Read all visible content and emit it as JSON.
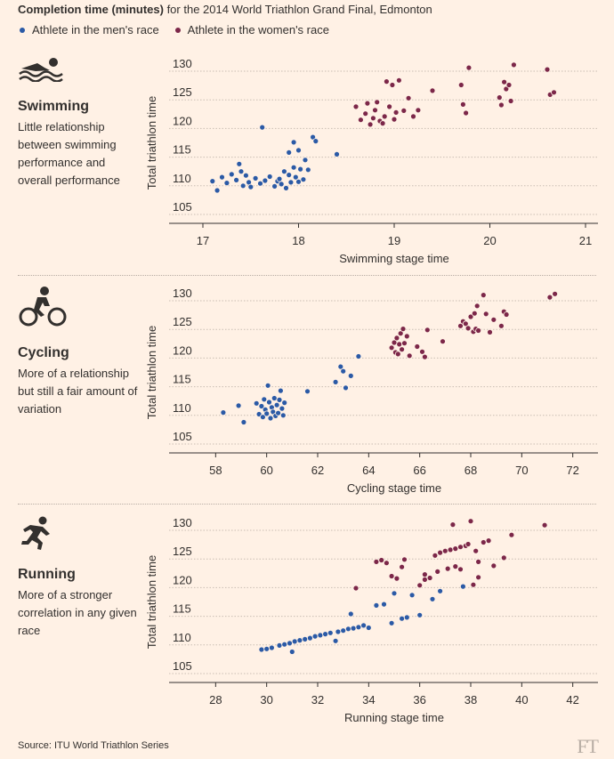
{
  "header": {
    "title_bold": "Completion time (minutes)",
    "title_rest": " for the 2014 World Triathlon Grand Final, Edmonton"
  },
  "legend": [
    {
      "label": "Athlete in the men's race",
      "color": "#2b5aa6"
    },
    {
      "label": "Athlete in the women's race",
      "color": "#7c2749"
    }
  ],
  "panels": [
    {
      "title": "Swimming",
      "description": "Little relationship between swimming performance and overall performance",
      "icon": "swimmer-icon"
    },
    {
      "title": "Cycling",
      "description": "More of a relationship but still a fair amount of variation",
      "icon": "cyclist-icon"
    },
    {
      "title": "Running",
      "description": "More of a stronger correlation in any given race",
      "icon": "runner-icon"
    }
  ],
  "colors": {
    "men": "#2b5aa6",
    "women": "#7c2749",
    "grid": "#c9bdb3",
    "axis": "#33302e"
  },
  "chart_data": [
    {
      "type": "scatter",
      "xlabel": "Swimming stage time",
      "ylabel": "Total triathlon time",
      "xlim": [
        17,
        21
      ],
      "ylim": [
        105,
        130
      ],
      "xticks": [
        17,
        18,
        19,
        20,
        21
      ],
      "yticks": [
        105,
        110,
        115,
        120,
        125,
        130
      ],
      "series": [
        {
          "name": "Athlete in the men's race",
          "points": [
            [
              17.1,
              110.8
            ],
            [
              17.15,
              109.2
            ],
            [
              17.2,
              111.5
            ],
            [
              17.25,
              110.5
            ],
            [
              17.3,
              112
            ],
            [
              17.35,
              111
            ],
            [
              17.38,
              113.8
            ],
            [
              17.4,
              112.5
            ],
            [
              17.42,
              110
            ],
            [
              17.45,
              111.8
            ],
            [
              17.48,
              110.6
            ],
            [
              17.5,
              109.8
            ],
            [
              17.55,
              111.3
            ],
            [
              17.6,
              110.4
            ],
            [
              17.62,
              120.2
            ],
            [
              17.65,
              110.9
            ],
            [
              17.7,
              111.6
            ],
            [
              17.75,
              109.9
            ],
            [
              17.78,
              110.8
            ],
            [
              17.8,
              111.2
            ],
            [
              17.82,
              110.3
            ],
            [
              17.85,
              112.5
            ],
            [
              17.87,
              109.6
            ],
            [
              17.9,
              111.9
            ],
            [
              17.92,
              110.6
            ],
            [
              17.95,
              113.2
            ],
            [
              17.97,
              111.5
            ],
            [
              18.0,
              110.7
            ],
            [
              18.02,
              112.9
            ],
            [
              18.05,
              111.1
            ],
            [
              18.07,
              114.5
            ],
            [
              18.1,
              112.8
            ],
            [
              18.15,
              118.5
            ],
            [
              18.18,
              117.8
            ],
            [
              18.4,
              115.5
            ],
            [
              17.95,
              117.6
            ],
            [
              18.0,
              116.2
            ],
            [
              17.9,
              115.8
            ]
          ]
        },
        {
          "name": "Athlete in the women's race",
          "points": [
            [
              18.6,
              123.8
            ],
            [
              18.65,
              121.5
            ],
            [
              18.7,
              122.6
            ],
            [
              18.72,
              124.4
            ],
            [
              18.75,
              120.7
            ],
            [
              18.78,
              121.8
            ],
            [
              18.8,
              123.2
            ],
            [
              18.82,
              124.6
            ],
            [
              18.85,
              121.3
            ],
            [
              18.88,
              120.9
            ],
            [
              18.9,
              122.1
            ],
            [
              18.92,
              128.2
            ],
            [
              18.95,
              123.8
            ],
            [
              18.98,
              127.6
            ],
            [
              19.0,
              121.6
            ],
            [
              19.02,
              122.8
            ],
            [
              19.05,
              128.4
            ],
            [
              19.1,
              123.1
            ],
            [
              19.15,
              125.3
            ],
            [
              19.2,
              122.1
            ],
            [
              19.25,
              123.2
            ],
            [
              19.4,
              126.6
            ],
            [
              19.7,
              127.6
            ],
            [
              19.72,
              124.2
            ],
            [
              19.75,
              122.7
            ],
            [
              19.78,
              130.6
            ],
            [
              20.1,
              125.4
            ],
            [
              20.12,
              124.1
            ],
            [
              20.15,
              128.1
            ],
            [
              20.17,
              126.9
            ],
            [
              20.2,
              127.6
            ],
            [
              20.22,
              124.8
            ],
            [
              20.25,
              131.1
            ],
            [
              20.6,
              130.3
            ],
            [
              20.63,
              125.9
            ],
            [
              20.67,
              126.3
            ]
          ]
        }
      ]
    },
    {
      "type": "scatter",
      "xlabel": "Cycling stage time",
      "ylabel": "Total triathlon time",
      "xlim": [
        57.5,
        72.5
      ],
      "ylim": [
        105,
        130
      ],
      "xticks": [
        58,
        60,
        62,
        64,
        66,
        68,
        70,
        72
      ],
      "yticks": [
        105,
        110,
        115,
        120,
        125,
        130
      ],
      "series": [
        {
          "name": "Athlete in the men's race",
          "points": [
            [
              58.3,
              110.5
            ],
            [
              58.9,
              111.7
            ],
            [
              59.1,
              108.8
            ],
            [
              59.6,
              112.1
            ],
            [
              59.7,
              110.2
            ],
            [
              59.8,
              111.6
            ],
            [
              59.85,
              109.7
            ],
            [
              59.9,
              112.8
            ],
            [
              59.95,
              111.0
            ],
            [
              60.0,
              110.3
            ],
            [
              60.05,
              115.2
            ],
            [
              60.1,
              112.3
            ],
            [
              60.15,
              109.5
            ],
            [
              60.2,
              111.4
            ],
            [
              60.25,
              110.6
            ],
            [
              60.3,
              113.0
            ],
            [
              60.35,
              109.9
            ],
            [
              60.4,
              111.8
            ],
            [
              60.45,
              110.4
            ],
            [
              60.5,
              112.7
            ],
            [
              60.55,
              114.3
            ],
            [
              60.6,
              111.2
            ],
            [
              60.65,
              110.0
            ],
            [
              60.7,
              112.2
            ],
            [
              61.6,
              114.2
            ],
            [
              62.7,
              115.8
            ],
            [
              62.9,
              118.5
            ],
            [
              63.0,
              117.7
            ],
            [
              63.1,
              114.8
            ],
            [
              63.3,
              116.9
            ],
            [
              63.6,
              120.3
            ]
          ]
        },
        {
          "name": "Athlete in the women's race",
          "points": [
            [
              64.9,
              121.8
            ],
            [
              65.0,
              122.7
            ],
            [
              65.05,
              121.0
            ],
            [
              65.1,
              123.5
            ],
            [
              65.15,
              120.7
            ],
            [
              65.2,
              122.4
            ],
            [
              65.25,
              124.3
            ],
            [
              65.3,
              121.5
            ],
            [
              65.35,
              125.1
            ],
            [
              65.4,
              122.6
            ],
            [
              65.5,
              123.8
            ],
            [
              65.6,
              120.4
            ],
            [
              65.9,
              122.0
            ],
            [
              66.1,
              121.1
            ],
            [
              66.2,
              120.2
            ],
            [
              66.3,
              124.9
            ],
            [
              66.9,
              122.9
            ],
            [
              67.6,
              125.6
            ],
            [
              67.7,
              126.4
            ],
            [
              67.8,
              126.0
            ],
            [
              67.9,
              125.2
            ],
            [
              68.0,
              127.2
            ],
            [
              68.1,
              124.6
            ],
            [
              68.15,
              127.8
            ],
            [
              68.2,
              125.1
            ],
            [
              68.25,
              129.1
            ],
            [
              68.3,
              124.8
            ],
            [
              68.5,
              131.0
            ],
            [
              68.6,
              127.7
            ],
            [
              68.75,
              124.5
            ],
            [
              68.9,
              126.7
            ],
            [
              69.2,
              125.6
            ],
            [
              69.3,
              128.1
            ],
            [
              69.4,
              127.6
            ],
            [
              71.1,
              130.6
            ],
            [
              71.3,
              131.2
            ]
          ]
        }
      ]
    },
    {
      "type": "scatter",
      "xlabel": "Running stage time",
      "ylabel": "Total triathlon time",
      "xlim": [
        27.5,
        42.5
      ],
      "ylim": [
        105,
        130
      ],
      "xticks": [
        28,
        30,
        32,
        34,
        36,
        38,
        40,
        42
      ],
      "yticks": [
        105,
        110,
        115,
        120,
        125,
        130
      ],
      "series": [
        {
          "name": "Athlete in the men's race",
          "points": [
            [
              29.8,
              109.2
            ],
            [
              30.0,
              109.3
            ],
            [
              30.2,
              109.5
            ],
            [
              30.5,
              109.9
            ],
            [
              30.7,
              110.1
            ],
            [
              30.9,
              110.3
            ],
            [
              31.0,
              108.8
            ],
            [
              31.1,
              110.6
            ],
            [
              31.3,
              110.8
            ],
            [
              31.5,
              111.0
            ],
            [
              31.7,
              111.2
            ],
            [
              31.9,
              111.5
            ],
            [
              32.1,
              111.7
            ],
            [
              32.3,
              111.9
            ],
            [
              32.5,
              112.1
            ],
            [
              32.7,
              110.7
            ],
            [
              32.8,
              112.3
            ],
            [
              33.0,
              112.5
            ],
            [
              33.2,
              112.8
            ],
            [
              33.3,
              115.4
            ],
            [
              33.4,
              112.9
            ],
            [
              33.6,
              113.1
            ],
            [
              33.8,
              113.4
            ],
            [
              34.0,
              113.0
            ],
            [
              34.3,
              116.9
            ],
            [
              34.6,
              117.1
            ],
            [
              34.9,
              113.8
            ],
            [
              35.0,
              119.0
            ],
            [
              35.3,
              114.6
            ],
            [
              35.5,
              114.8
            ],
            [
              35.7,
              118.7
            ],
            [
              36.0,
              115.2
            ],
            [
              36.5,
              118.0
            ],
            [
              36.8,
              119.4
            ],
            [
              37.7,
              120.2
            ]
          ]
        },
        {
          "name": "Athlete in the women's race",
          "points": [
            [
              33.5,
              119.9
            ],
            [
              34.3,
              124.5
            ],
            [
              34.5,
              124.8
            ],
            [
              34.7,
              124.3
            ],
            [
              34.9,
              122.0
            ],
            [
              35.1,
              121.6
            ],
            [
              35.3,
              123.6
            ],
            [
              35.4,
              124.9
            ],
            [
              36.0,
              120.4
            ],
            [
              36.2,
              121.4
            ],
            [
              36.4,
              121.7
            ],
            [
              36.6,
              125.6
            ],
            [
              36.8,
              126.1
            ],
            [
              37.0,
              126.4
            ],
            [
              37.2,
              126.6
            ],
            [
              37.3,
              131.0
            ],
            [
              37.4,
              126.8
            ],
            [
              37.6,
              127.1
            ],
            [
              37.8,
              127.3
            ],
            [
              37.9,
              127.6
            ],
            [
              38.0,
              131.6
            ],
            [
              38.2,
              126.4
            ],
            [
              38.3,
              124.5
            ],
            [
              38.5,
              127.9
            ],
            [
              38.7,
              128.2
            ],
            [
              38.9,
              123.8
            ],
            [
              38.3,
              121.8
            ],
            [
              38.1,
              120.5
            ],
            [
              37.6,
              123.2
            ],
            [
              39.3,
              125.2
            ],
            [
              39.6,
              129.2
            ],
            [
              40.9,
              130.9
            ],
            [
              36.2,
              122.3
            ],
            [
              36.7,
              122.8
            ],
            [
              37.1,
              123.3
            ],
            [
              37.4,
              123.7
            ]
          ]
        }
      ]
    }
  ],
  "source": "Source: ITU World Triathlon Series",
  "logo": "FT"
}
